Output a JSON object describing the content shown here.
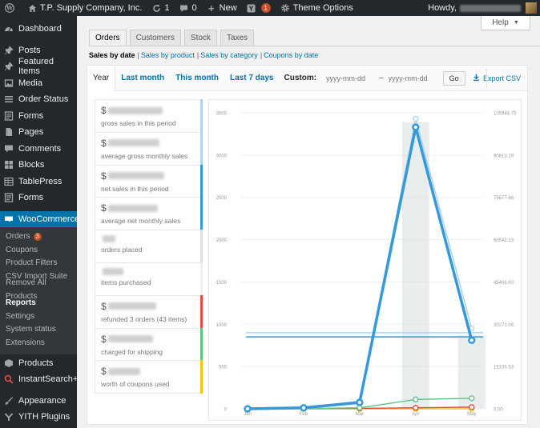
{
  "adminbar": {
    "site_name": "T.P. Supply Company, Inc.",
    "updates_count": "1",
    "comments_count": "0",
    "new_label": "New",
    "yoast_badge": "1",
    "theme_options_label": "Theme Options",
    "howdy_label": "Howdy,"
  },
  "sidebar": {
    "items": [
      {
        "label": "Dashboard",
        "icon": "dashboard-icon"
      },
      {
        "label": "Posts",
        "icon": "pin-icon"
      },
      {
        "label": "Featured Items",
        "icon": "pin-icon"
      },
      {
        "label": "Media",
        "icon": "media-icon"
      },
      {
        "label": "Order Status",
        "icon": "list-icon"
      },
      {
        "label": "Forms",
        "icon": "forms-icon"
      },
      {
        "label": "Pages",
        "icon": "page-icon"
      },
      {
        "label": "Comments",
        "icon": "comment-icon"
      },
      {
        "label": "Blocks",
        "icon": "block-icon"
      },
      {
        "label": "TablePress",
        "icon": "table-icon"
      },
      {
        "label": "Forms",
        "icon": "forms-icon"
      },
      {
        "label": "WooCommerce",
        "icon": "woo-icon"
      },
      {
        "label": "Products",
        "icon": "product-icon"
      },
      {
        "label": "InstantSearch+",
        "icon": "search-icon"
      },
      {
        "label": "Appearance",
        "icon": "brush-icon"
      },
      {
        "label": "YITH Plugins",
        "icon": "yith-icon"
      }
    ],
    "woo_submenu": [
      {
        "label": "Orders",
        "badge": "3"
      },
      {
        "label": "Coupons"
      },
      {
        "label": "Product Filters"
      },
      {
        "label": "CSV Import Suite"
      },
      {
        "label": "Remove All Products"
      },
      {
        "label": "Reports"
      },
      {
        "label": "Settings"
      },
      {
        "label": "System status"
      },
      {
        "label": "Extensions"
      }
    ]
  },
  "help_label": "Help",
  "tabs": [
    "Orders",
    "Customers",
    "Stock",
    "Taxes"
  ],
  "subnav": [
    "Sales by date",
    "Sales by product",
    "Sales by category",
    "Coupons by date"
  ],
  "ranges": [
    "Year",
    "Last month",
    "This month",
    "Last 7 days"
  ],
  "custom": {
    "label": "Custom:",
    "start_placeholder": "yyyy-mm-dd",
    "dash": "–",
    "end_placeholder": "yyyy-mm-dd",
    "go_label": "Go"
  },
  "export_label": "Export CSV",
  "legend": [
    {
      "currency": "$",
      "label": "gross sales in this period",
      "color": "#b1d4ea"
    },
    {
      "currency": "$",
      "label": "average gross monthly sales",
      "color": "#b1d4ea"
    },
    {
      "currency": "$",
      "label": "net sales in this period",
      "color": "#3498db"
    },
    {
      "currency": "$",
      "label": "average net monthly sales",
      "color": "#3498db"
    },
    {
      "currency": "",
      "label": "orders placed",
      "color": "#dbe1e3"
    },
    {
      "currency": "",
      "label": "items purchased",
      "color": "#ecf0f1"
    },
    {
      "currency": "$",
      "label": "refunded 3 orders (43 items)",
      "color": "#e74c3c"
    },
    {
      "currency": "$",
      "label": "charged for shipping",
      "color": "#5cc488"
    },
    {
      "currency": "$",
      "label": "worth of coupons used",
      "color": "#f1c40f"
    }
  ],
  "chart_data": {
    "type": "line",
    "categories": [
      "Jan",
      "Feb",
      "Mar",
      "Apr",
      "May"
    ],
    "y_left": {
      "ticks": [
        "0",
        "500",
        "1000",
        "1500",
        "2000",
        "2500",
        "3000",
        "3500"
      ],
      "range": [
        0,
        3500
      ]
    },
    "y_right": {
      "ticks": [
        "0.00",
        "15135.53",
        "30271.06",
        "45406.60",
        "60542.13",
        "75677.66",
        "90813.19",
        "105948.73"
      ],
      "range": [
        0,
        105948.73
      ]
    },
    "grid": "horizontal",
    "series": [
      {
        "key": "orders_bars",
        "kind": "bar",
        "color": "#dbe1e3",
        "values": [
          0,
          0,
          0,
          3390,
          870
        ]
      },
      {
        "key": "gross_sales",
        "kind": "line",
        "color": "#b1d4ea",
        "values": [
          0,
          15,
          90,
          3430,
          950
        ]
      },
      {
        "key": "net_sales",
        "kind": "line",
        "color": "#3498db",
        "values": [
          0,
          12,
          75,
          3330,
          810
        ]
      },
      {
        "key": "shipping",
        "kind": "line",
        "color": "#5cc488",
        "values": [
          0,
          3,
          12,
          110,
          125
        ]
      },
      {
        "key": "refunds",
        "kind": "line",
        "color": "#e74c3c",
        "values": [
          0,
          2,
          5,
          12,
          20
        ]
      },
      {
        "key": "coupons",
        "kind": "line",
        "color": "#f1c40f",
        "values": [
          0,
          0,
          0,
          0,
          0
        ]
      },
      {
        "key": "avg_gross",
        "kind": "hline",
        "color": "#b1d4ea",
        "value": 900
      },
      {
        "key": "avg_net",
        "kind": "hline",
        "color": "#3498db",
        "value": 850
      }
    ]
  }
}
